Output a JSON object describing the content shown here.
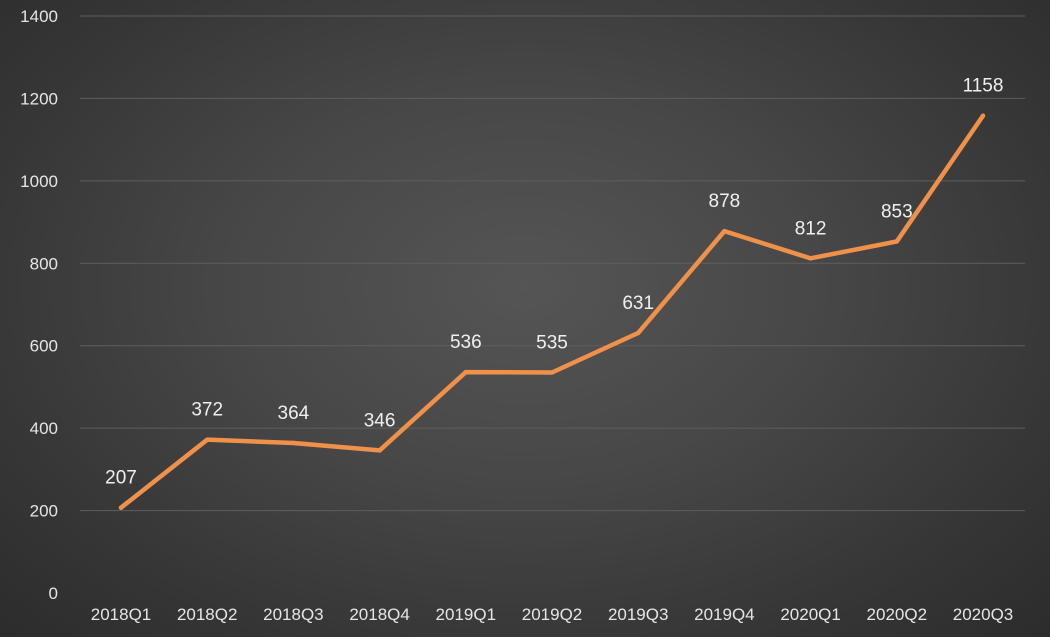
{
  "chart_data": {
    "type": "line",
    "title": "",
    "xlabel": "",
    "ylabel": "",
    "categories": [
      "2018Q1",
      "2018Q2",
      "2018Q3",
      "2018Q4",
      "2019Q1",
      "2019Q2",
      "2019Q3",
      "2019Q4",
      "2020Q1",
      "2020Q2",
      "2020Q3"
    ],
    "series": [
      {
        "values": [
          207,
          372,
          364,
          346,
          536,
          535,
          631,
          878,
          812,
          853,
          1158
        ],
        "color": "#f0914a"
      }
    ],
    "ylim": [
      0,
      1400
    ],
    "y_ticks": [
      0,
      200,
      400,
      600,
      800,
      1000,
      1200,
      1400
    ],
    "grid": true,
    "legend": "none",
    "data_labels": true
  }
}
